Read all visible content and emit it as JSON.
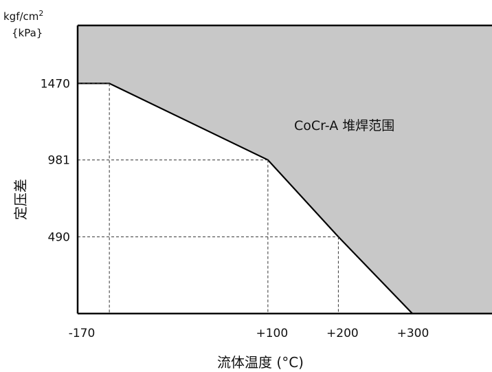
{
  "chart_data": {
    "type": "area",
    "xlabel": "流体温度 (°C)",
    "ylabel": "定压差",
    "y_unit_top": "kgf/cm",
    "y_unit_top_sup": "2",
    "y_unit_bottom": "{kPa}",
    "region_label": "CoCr-A 堆焊范围",
    "x_ticks": [
      {
        "value": -170,
        "label": "-170"
      },
      {
        "value": 100,
        "label": "+100"
      },
      {
        "value": 200,
        "label": "+200"
      },
      {
        "value": 300,
        "label": "+300"
      }
    ],
    "y_ticks": [
      {
        "value": 490,
        "label": "490"
      },
      {
        "value": 981,
        "label": "981"
      },
      {
        "value": 1470,
        "label": "1470"
      }
    ],
    "boundary": {
      "name": "",
      "points": [
        [
          -170,
          1470
        ],
        [
          -125,
          1470
        ],
        [
          100,
          981
        ],
        [
          200,
          490
        ],
        [
          305,
          0
        ]
      ]
    },
    "reference_lines": [
      {
        "x": -125,
        "y": 1470
      },
      {
        "x": 100,
        "y": 981
      },
      {
        "x": 200,
        "y": 490
      }
    ],
    "xlim": [
      -170,
      420
    ],
    "ylim": [
      0,
      1840
    ],
    "region_color": "#c8c8c8",
    "grid": false
  }
}
